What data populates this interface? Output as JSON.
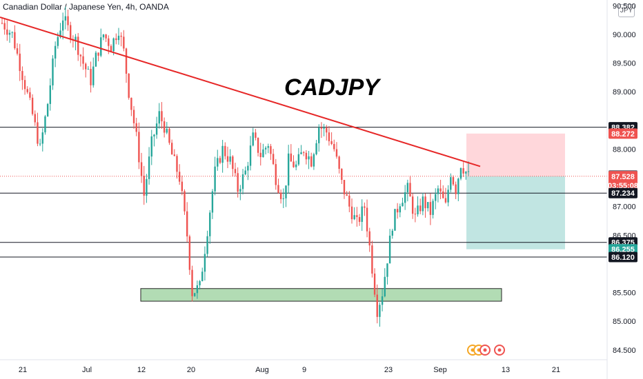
{
  "header": {
    "title": "Canadian Dollar / Japanese Yen, 4h, OANDA",
    "currency": "JPY"
  },
  "colors": {
    "up": "#26a69a",
    "down": "#ef5350",
    "trendline": "#e62727",
    "zone_fill": "#a5d6a7",
    "target_fill": "#b2dfdb",
    "stop_fill": "#ffcdd2",
    "level_line": "#131722"
  },
  "chart_data": {
    "type": "candlestick",
    "symbol": "CADJPY",
    "annotation": "CADJPY",
    "y_axis": {
      "min": 84.33,
      "max": 90.6,
      "ticks": [
        90.5,
        90.0,
        89.5,
        89.0,
        88.0,
        87.0,
        86.5,
        85.5,
        85.0,
        84.5
      ],
      "tick_labels": [
        "90.500",
        "90.000",
        "89.500",
        "89.000",
        "88.000",
        "87.000",
        "86.500",
        "85.500",
        "85.000",
        "84.500"
      ]
    },
    "x_axis": {
      "tick_labels": [
        "21",
        "Jul",
        "12",
        "20",
        "Aug",
        "9",
        "23",
        "Sep",
        "13",
        "21"
      ]
    },
    "horizontal_levels": [
      88.382,
      87.234,
      86.375,
      86.12
    ],
    "price_labels": [
      {
        "text": "88.382",
        "value": 88.382,
        "color": "#131722"
      },
      {
        "text": "88.272",
        "value": 88.272,
        "color": "#ef5350"
      },
      {
        "text": "87.543",
        "value": 87.543,
        "color": "#787b86"
      },
      {
        "text": "87.528",
        "value": 87.528,
        "color": "#ef5350",
        "countdown": "03:55:08"
      },
      {
        "text": "87.234",
        "value": 87.234,
        "color": "#131722"
      },
      {
        "text": "86.375",
        "value": 86.375,
        "color": "#131722"
      },
      {
        "text": "86.255",
        "value": 86.255,
        "color": "#26a69a"
      },
      {
        "text": "86.120",
        "value": 86.12,
        "color": "#131722"
      }
    ],
    "current_price": 87.528,
    "trendline": {
      "start_price": 90.3,
      "end_price": 87.7
    },
    "support_zone": {
      "top": 85.57,
      "bottom": 85.35
    },
    "position": {
      "entry": 87.528,
      "stop": 88.272,
      "target": 86.255
    },
    "waypoints": [
      [
        0,
        90.2
      ],
      [
        4,
        90.0
      ],
      [
        8,
        89.3
      ],
      [
        12,
        88.6
      ],
      [
        15,
        88.0
      ],
      [
        18,
        88.8
      ],
      [
        21,
        89.8
      ],
      [
        24,
        90.3
      ],
      [
        26,
        90.1
      ],
      [
        29,
        89.9
      ],
      [
        32,
        89.5
      ],
      [
        35,
        89.2
      ],
      [
        37,
        89.6
      ],
      [
        40,
        90.0
      ],
      [
        43,
        89.8
      ],
      [
        46,
        90.1
      ],
      [
        48,
        89.7
      ],
      [
        50,
        89.0
      ],
      [
        53,
        88.2
      ],
      [
        56,
        87.2
      ],
      [
        59,
        88.1
      ],
      [
        62,
        88.6
      ],
      [
        64,
        88.4
      ],
      [
        67,
        87.9
      ],
      [
        70,
        87.5
      ],
      [
        73,
        86.5
      ],
      [
        75,
        85.5
      ],
      [
        78,
        85.6
      ],
      [
        81,
        86.6
      ],
      [
        84,
        87.6
      ],
      [
        87,
        88.0
      ],
      [
        90,
        87.8
      ],
      [
        93,
        87.3
      ],
      [
        96,
        87.6
      ],
      [
        99,
        88.2
      ],
      [
        102,
        87.9
      ],
      [
        105,
        88.1
      ],
      [
        108,
        87.5
      ],
      [
        111,
        87.1
      ],
      [
        113,
        87.8
      ],
      [
        116,
        87.7
      ],
      [
        119,
        88.0
      ],
      [
        122,
        87.8
      ],
      [
        125,
        88.4
      ],
      [
        128,
        88.3
      ],
      [
        131,
        88.0
      ],
      [
        134,
        87.4
      ],
      [
        137,
        87.0
      ],
      [
        140,
        86.7
      ],
      [
        143,
        87.0
      ],
      [
        145,
        86.3
      ],
      [
        148,
        85.2
      ],
      [
        150,
        85.5
      ],
      [
        152,
        86.1
      ],
      [
        154,
        86.7
      ],
      [
        157,
        87.1
      ],
      [
        160,
        87.3
      ],
      [
        163,
        86.8
      ],
      [
        166,
        87.1
      ],
      [
        169,
        86.9
      ],
      [
        172,
        87.3
      ],
      [
        175,
        87.0
      ],
      [
        177,
        87.6
      ],
      [
        179,
        87.3
      ],
      [
        181,
        87.75
      ],
      [
        184,
        87.53
      ]
    ]
  }
}
